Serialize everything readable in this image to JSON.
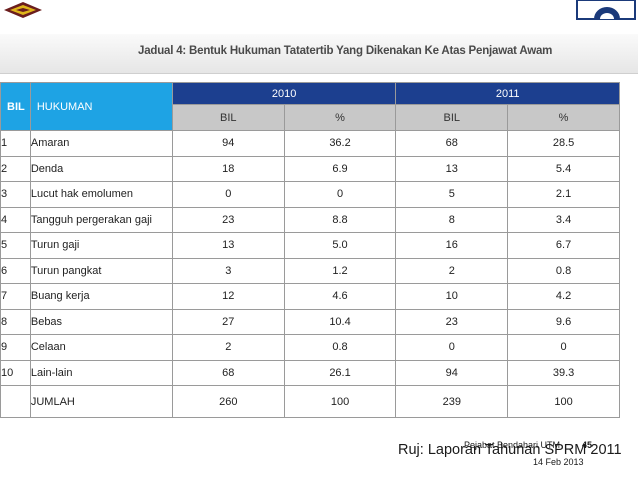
{
  "caption": "Jadual 4: Bentuk Hukuman Tatatertib Yang Dikenakan Ke Atas Penjawat Awam",
  "table": {
    "header_bil": "BIL",
    "header_hukuman": "HUKUMAN",
    "years": [
      "2010",
      "2011"
    ],
    "sub_headers": [
      "BIL",
      "%",
      "BIL",
      "%"
    ],
    "rows": [
      {
        "no": "1",
        "name": "Amaran",
        "bil2010": "94",
        "pct2010": "36.2",
        "bil2011": "68",
        "pct2011": "28.5"
      },
      {
        "no": "2",
        "name": "Denda",
        "bil2010": "18",
        "pct2010": "6.9",
        "bil2011": "13",
        "pct2011": "5.4"
      },
      {
        "no": "3",
        "name": "Lucut hak emolumen",
        "bil2010": "0",
        "pct2010": "0",
        "bil2011": "5",
        "pct2011": "2.1"
      },
      {
        "no": "4",
        "name": "Tangguh pergerakan gaji",
        "bil2010": "23",
        "pct2010": "8.8",
        "bil2011": "8",
        "pct2011": "3.4"
      },
      {
        "no": "5",
        "name": "Turun gaji",
        "bil2010": "13",
        "pct2010": "5.0",
        "bil2011": "16",
        "pct2011": "6.7"
      },
      {
        "no": "6",
        "name": "Turun pangkat",
        "bil2010": "3",
        "pct2010": "1.2",
        "bil2011": "2",
        "pct2011": "0.8"
      },
      {
        "no": "7",
        "name": "Buang kerja",
        "bil2010": "12",
        "pct2010": "4.6",
        "bil2011": "10",
        "pct2011": "4.2"
      },
      {
        "no": "8",
        "name": "Bebas",
        "bil2010": "27",
        "pct2010": "10.4",
        "bil2011": "23",
        "pct2011": "9.6"
      },
      {
        "no": "9",
        "name": "Celaan",
        "bil2010": "2",
        "pct2010": "0.8",
        "bil2011": "0",
        "pct2011": "0"
      },
      {
        "no": "10",
        "name": "Lain-lain",
        "bil2010": "68",
        "pct2010": "26.1",
        "bil2011": "94",
        "pct2011": "39.3"
      }
    ],
    "total": {
      "name": "JUMLAH",
      "bil2010": "260",
      "pct2010": "100",
      "bil2011": "239",
      "pct2011": "100"
    }
  },
  "footer": {
    "reference": "Ruj: Laporan Tahunan SPRM 2011",
    "office": "Pejabat Bendahari UTM",
    "page": "45",
    "date": "14 Feb 2013"
  },
  "colors": {
    "header_dark": "#1c3f8f",
    "header_light": "#1ea3e4",
    "subheader": "#c8c8c8"
  }
}
